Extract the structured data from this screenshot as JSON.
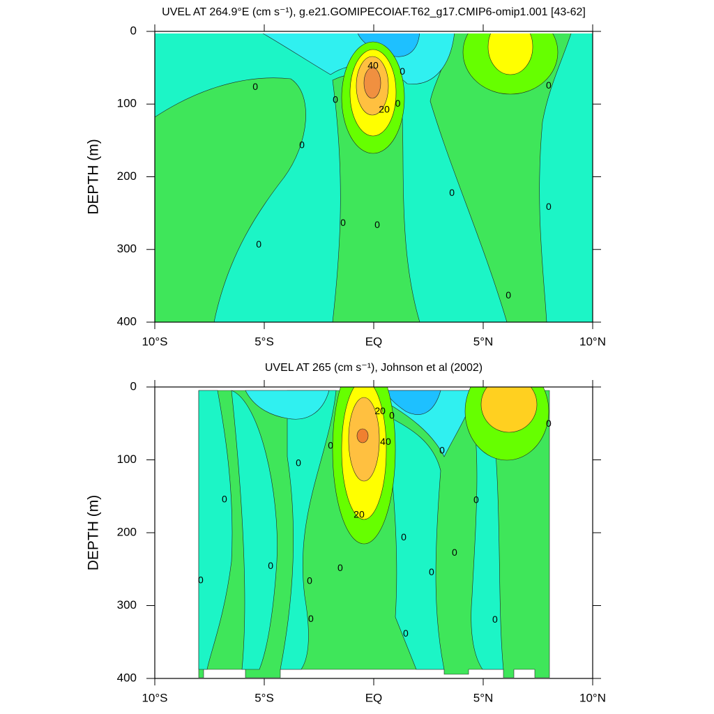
{
  "chart_data": [
    {
      "type": "contour",
      "title": "UVEL AT 264.9°E (cm s⁻¹), g.e21.GOMIPECOIAF.T62_g17.CMIP6-omip1.001 [43-62]",
      "ylabel": "DEPTH (m)",
      "xlim": [
        -10,
        10
      ],
      "xticks": [
        {
          "value": -10,
          "label": "10°S"
        },
        {
          "value": -5,
          "label": "5°S"
        },
        {
          "value": 0,
          "label": "EQ"
        },
        {
          "value": 5,
          "label": "5°N"
        },
        {
          "value": 10,
          "label": "10°N"
        }
      ],
      "ylim": [
        0,
        400
      ],
      "y_reversed": true,
      "yticks": [
        0,
        100,
        200,
        300,
        400
      ],
      "contour_labels": [
        {
          "x": -5.41,
          "y": 77,
          "value": 0
        },
        {
          "x": -3.28,
          "y": 157,
          "value": 0
        },
        {
          "x": -1.75,
          "y": 95,
          "value": 0
        },
        {
          "x": 1.31,
          "y": 56,
          "value": 0
        },
        {
          "x": 0.48,
          "y": 108,
          "value": 20
        },
        {
          "x": -1.4,
          "y": 264,
          "value": 0
        },
        {
          "x": 0.16,
          "y": 267,
          "value": 0
        },
        {
          "x": 3.57,
          "y": 223,
          "value": 0
        },
        {
          "x": 7.99,
          "y": 75,
          "value": 0
        },
        {
          "x": 7.99,
          "y": 242,
          "value": 0
        },
        {
          "x": 6.15,
          "y": 364,
          "value": 0
        },
        {
          "x": -5.25,
          "y": 294,
          "value": 0
        },
        {
          "x": -0.03,
          "y": 48,
          "value": 40
        },
        {
          "x": 1.1,
          "y": 100,
          "value": 0
        }
      ]
    },
    {
      "type": "contour",
      "title": "UVEL AT 265 (cm s⁻¹), Johnson et al (2002)",
      "ylabel": "DEPTH (m)",
      "xlim": [
        -10,
        10
      ],
      "xticks": [
        {
          "value": -10,
          "label": "10°S"
        },
        {
          "value": -5,
          "label": "5°S"
        },
        {
          "value": 0,
          "label": "EQ"
        },
        {
          "value": 5,
          "label": "5°N"
        },
        {
          "value": 10,
          "label": "10°N"
        }
      ],
      "ylim": [
        0,
        400
      ],
      "y_reversed": true,
      "yticks": [
        0,
        100,
        200,
        300,
        400
      ],
      "contour_labels": [
        {
          "x": -7.9,
          "y": 266,
          "value": 0
        },
        {
          "x": -6.82,
          "y": 155,
          "value": 0
        },
        {
          "x": -3.44,
          "y": 105,
          "value": 0
        },
        {
          "x": -1.97,
          "y": 81,
          "value": 0
        },
        {
          "x": 0.83,
          "y": 40,
          "value": 0
        },
        {
          "x": 3.12,
          "y": 88,
          "value": 0
        },
        {
          "x": 4.68,
          "y": 156,
          "value": 0
        },
        {
          "x": 7.99,
          "y": 51,
          "value": 0
        },
        {
          "x": 1.37,
          "y": 207,
          "value": 0
        },
        {
          "x": 3.69,
          "y": 228,
          "value": 0
        },
        {
          "x": 2.64,
          "y": 255,
          "value": 0
        },
        {
          "x": -1.53,
          "y": 249,
          "value": 0
        },
        {
          "x": -2.93,
          "y": 267,
          "value": 0
        },
        {
          "x": -4.71,
          "y": 246,
          "value": 0
        },
        {
          "x": -2.87,
          "y": 319,
          "value": 0
        },
        {
          "x": 1.46,
          "y": 339,
          "value": 0
        },
        {
          "x": 5.54,
          "y": 320,
          "value": 0
        },
        {
          "x": 0.29,
          "y": 34,
          "value": 20
        },
        {
          "x": -0.67,
          "y": 176,
          "value": 20
        },
        {
          "x": 0.54,
          "y": 76,
          "value": 40
        }
      ]
    }
  ]
}
